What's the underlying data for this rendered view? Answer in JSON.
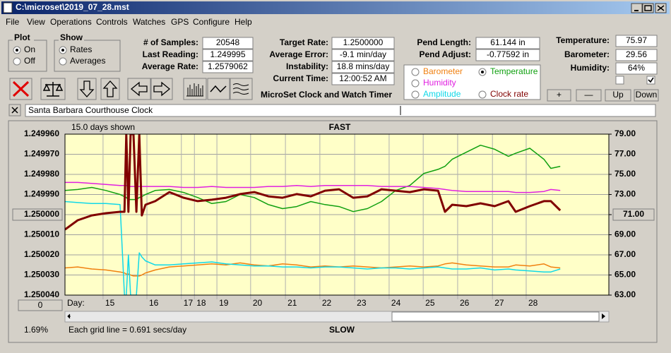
{
  "window": {
    "title": "C:\\microset\\2019_07_28.mst"
  },
  "menu": [
    "File",
    "View",
    "Operations",
    "Controls",
    "Watches",
    "GPS",
    "Configure",
    "Help"
  ],
  "plot_group": {
    "label": "Plot",
    "options": [
      "On",
      "Off"
    ],
    "selected": 0
  },
  "show_group": {
    "label": "Show",
    "options": [
      "Rates",
      "Averages"
    ],
    "selected": 0
  },
  "readouts_left": [
    {
      "label": "# of Samples:",
      "value": "20548"
    },
    {
      "label": "Last Reading:",
      "value": "1.249995"
    },
    {
      "label": "Average Rate:",
      "value": "1.2579062"
    }
  ],
  "readouts_center": [
    {
      "label": "Target Rate:",
      "value": "1.2500000"
    },
    {
      "label": "Average Error:",
      "value": "-9.1 min/day"
    },
    {
      "label": "Instability:",
      "value": "18.8 mins/day"
    },
    {
      "label": "Current Time:",
      "value": "12:00:52 AM"
    }
  ],
  "app_name": "MicroSet Clock and Watch Timer",
  "readouts_pend": [
    {
      "label": "Pend Length:",
      "value": "61.144 in"
    },
    {
      "label": "Pend Adjust:",
      "value": "-0.77592 in"
    }
  ],
  "readouts_env": [
    {
      "label": "Temperature:",
      "value": "75.97"
    },
    {
      "label": "Barometer:",
      "value": "29.56"
    },
    {
      "label": "Humidity:",
      "value": "64%"
    }
  ],
  "checkboxes": [
    false,
    true
  ],
  "env_buttons": [
    "+",
    "—",
    "Up",
    "Down"
  ],
  "clock_name": "Santa Barbara Courthouse Clock",
  "selected_series": 1,
  "chart_data": {
    "type": "line",
    "title": "FAST",
    "bottom_label": "SLOW",
    "days_shown": "15.0 days shown",
    "x_label": "Day:",
    "offset_button": "0",
    "percent": "1.69%",
    "grid_note": "Each grid line = 0.691 secs/day",
    "grid": true,
    "x": [
      14.0,
      14.35,
      14.74,
      15.13,
      15.52,
      15.64,
      15.69,
      15.75,
      15.81,
      15.89,
      15.97,
      16.05,
      16.12,
      16.22,
      16.49,
      16.88,
      17.27,
      17.66,
      18.05,
      18.44,
      18.83,
      19.22,
      19.61,
      20.0,
      20.39,
      20.78,
      21.17,
      21.56,
      21.95,
      22.34,
      22.73,
      23.12,
      23.51,
      23.9,
      24.29,
      24.48,
      24.68,
      25.07,
      25.46,
      25.85,
      26.23,
      26.43,
      26.82,
      27.21,
      27.4,
      27.66
    ],
    "xlim": [
      14,
      29
    ],
    "xticks": [
      {
        "value": 15.05,
        "label": "15"
      },
      {
        "value": 16.26,
        "label": "16"
      },
      {
        "value": 17.21,
        "label": "17"
      },
      {
        "value": 17.57,
        "label": "18"
      },
      {
        "value": 18.19,
        "label": "19"
      },
      {
        "value": 19.12,
        "label": "20"
      },
      {
        "value": 20.08,
        "label": "21"
      },
      {
        "value": 21.03,
        "label": "22"
      },
      {
        "value": 21.99,
        "label": "23"
      },
      {
        "value": 22.94,
        "label": "24"
      },
      {
        "value": 23.88,
        "label": "25"
      },
      {
        "value": 24.83,
        "label": "26"
      },
      {
        "value": 25.79,
        "label": "27"
      },
      {
        "value": 26.72,
        "label": "28"
      }
    ],
    "ylim": [
      1.25004,
      1.24996
    ],
    "yticks": [
      {
        "value": 1.24996,
        "label": "1.249960"
      },
      {
        "value": 1.24997,
        "label": "1.249970"
      },
      {
        "value": 1.24998,
        "label": "1.249980"
      },
      {
        "value": 1.24999,
        "label": "1.249990"
      },
      {
        "value": 1.25,
        "label": "1.250000"
      },
      {
        "value": 1.25001,
        "label": "1.250010"
      },
      {
        "value": 1.25002,
        "label": "1.250020"
      },
      {
        "value": 1.25003,
        "label": "1.250030"
      },
      {
        "value": 1.25004,
        "label": "1.250040"
      }
    ],
    "y2lim": [
      63,
      79
    ],
    "y2ticks": [
      {
        "value": 79,
        "label": "79.00"
      },
      {
        "value": 77,
        "label": "77.00"
      },
      {
        "value": 75,
        "label": "75.00"
      },
      {
        "value": 73,
        "label": "73.00"
      },
      {
        "value": 71,
        "label": "71.00"
      },
      {
        "value": 69,
        "label": "69.00"
      },
      {
        "value": 67,
        "label": "67.00"
      },
      {
        "value": 65,
        "label": "65.00"
      },
      {
        "value": 63,
        "label": "63.00"
      }
    ],
    "series": [
      {
        "name": "Barometer",
        "color": "#f08010",
        "axis": "y2",
        "width": 1.5,
        "values": [
          65.7,
          65.8,
          65.6,
          65.5,
          65.3,
          65.2,
          65.1,
          65.1,
          65.0,
          64.9,
          64.9,
          64.9,
          65.0,
          65.2,
          65.5,
          65.8,
          65.9,
          66.0,
          66.1,
          66.0,
          66.2,
          66.0,
          65.9,
          66.1,
          66.0,
          65.8,
          65.9,
          65.8,
          65.9,
          65.8,
          65.7,
          65.8,
          65.9,
          65.8,
          65.9,
          66.1,
          66.2,
          66.0,
          65.9,
          65.8,
          65.8,
          66.0,
          65.9,
          66.1,
          65.8,
          65.7
        ]
      },
      {
        "name": "Temperature",
        "color": "#10a010",
        "axis": "y2",
        "width": 1.5,
        "values": [
          73.4,
          73.5,
          73.7,
          73.4,
          73.0,
          72.8,
          72.7,
          72.5,
          72.5,
          72.5,
          72.5,
          72.7,
          72.8,
          73.0,
          73.4,
          73.5,
          73.2,
          72.7,
          72.1,
          72.3,
          73.0,
          72.7,
          72.0,
          71.6,
          71.8,
          72.3,
          72.0,
          71.8,
          71.3,
          71.6,
          72.3,
          73.4,
          73.9,
          75.1,
          75.5,
          75.8,
          76.5,
          77.2,
          77.9,
          77.5,
          76.8,
          77.1,
          77.6,
          76.5,
          75.6,
          75.8
        ]
      },
      {
        "name": "Humidity",
        "color": "#e020e0",
        "axis": "y2",
        "width": 1.5,
        "values": [
          74.2,
          74.2,
          74.1,
          74.0,
          73.9,
          73.9,
          73.9,
          73.8,
          73.8,
          73.8,
          73.8,
          73.8,
          73.8,
          73.8,
          73.8,
          73.8,
          73.7,
          73.7,
          73.8,
          73.7,
          73.7,
          73.7,
          73.8,
          73.8,
          73.9,
          73.8,
          73.9,
          73.9,
          73.9,
          73.9,
          73.8,
          73.8,
          73.8,
          73.7,
          73.6,
          73.5,
          73.4,
          73.3,
          73.3,
          73.3,
          73.3,
          73.2,
          73.2,
          73.3,
          73.5,
          73.4
        ]
      },
      {
        "name": "Amplitude",
        "color": "#10d8e8",
        "axis": "y2",
        "width": 1.5,
        "values": [
          72.3,
          72.2,
          72.1,
          72.1,
          72.0,
          63.0,
          63.0,
          67.0,
          63.0,
          63.0,
          63.0,
          67.2,
          66.8,
          66.4,
          66.0,
          66.0,
          66.1,
          66.2,
          66.3,
          66.1,
          66.0,
          65.9,
          65.9,
          65.8,
          65.8,
          65.7,
          65.8,
          65.8,
          65.7,
          65.6,
          65.7,
          65.7,
          65.6,
          65.7,
          65.8,
          65.7,
          65.6,
          65.6,
          65.7,
          65.5,
          65.6,
          65.5,
          65.4,
          65.3,
          65.3,
          65.6
        ]
      },
      {
        "name": "Clock rate",
        "color": "#800000",
        "axis": "y",
        "width": 3,
        "values": [
          1.2500074,
          1.2500028,
          1.2500004,
          1.2499993,
          1.2499986,
          1.2499986,
          1.24996,
          1.2499986,
          1.24996,
          1.24996,
          1.2499986,
          1.24996,
          1.2500004,
          1.2499951,
          1.2499933,
          1.2499888,
          1.2499916,
          1.2499933,
          1.2499926,
          1.2499916,
          1.2499898,
          1.2499888,
          1.2499909,
          1.2499916,
          1.2499898,
          1.2499909,
          1.2499881,
          1.2499874,
          1.2499916,
          1.2499909,
          1.2499874,
          1.2499881,
          1.2499888,
          1.2499874,
          1.2499881,
          1.2499986,
          1.2499951,
          1.2499958,
          1.2499944,
          1.2499958,
          1.2499933,
          1.2499986,
          1.2499958,
          1.2499933,
          1.2499933,
          1.2499979
        ]
      }
    ]
  }
}
